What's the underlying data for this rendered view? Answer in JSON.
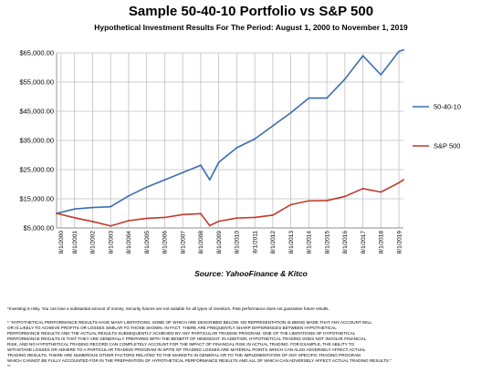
{
  "chart_data": {
    "type": "line",
    "title": "Sample 50-40-10 Portfolio vs S&P 500",
    "subtitle": "Hypothetical Investment  Results For The Period: August 1, 2000 to  November 1, 2019",
    "xlabel": "",
    "ylabel": "",
    "ylim": [
      5000,
      65000
    ],
    "yticks": [
      "$5,000.00",
      "$15,000.00",
      "$25,000.00",
      "$35,000.00",
      "$45,000.00",
      "$55,000.00",
      "$65,000.00"
    ],
    "ytick_values": [
      5000,
      15000,
      25000,
      35000,
      45000,
      55000,
      65000
    ],
    "categories": [
      "8/1/2000",
      "8/1/2001",
      "8/1/2002",
      "8/1/2003",
      "8/1/2004",
      "8/1/2005",
      "8/1/2006",
      "8/1/2007",
      "8/1/2008",
      "8/1/2009",
      "8/1/2010",
      "8/1/2011",
      "8/1/2012",
      "8/1/2013",
      "8/1/2014",
      "8/1/2015",
      "8/1/2016",
      "8/1/2017",
      "8/1/2018",
      "8/1/2019"
    ],
    "x_positions": [
      0.25,
      1,
      2,
      3,
      4,
      5,
      6,
      7,
      8,
      9,
      10,
      11,
      12,
      13,
      14,
      15,
      16,
      17,
      18,
      19
    ],
    "grid": true,
    "legend_position": "right",
    "series": [
      {
        "name": "50-40-10",
        "color": "#3b6db0",
        "x": [
          0,
          1,
          2,
          3,
          4,
          5,
          6,
          7,
          8,
          8.5,
          9,
          10,
          11,
          12,
          13,
          14,
          15,
          16,
          17,
          18,
          19,
          19.25
        ],
        "values": [
          10000,
          11500,
          12000,
          12300,
          16000,
          19000,
          21500,
          24000,
          26500,
          21500,
          27500,
          32500,
          35500,
          40000,
          44500,
          49500,
          49500,
          56000,
          64000,
          57500,
          65500,
          66000
        ]
      },
      {
        "name": "S&P 500",
        "color": "#c0392b",
        "x": [
          0,
          1,
          2,
          3,
          4,
          5,
          6,
          7,
          8,
          8.5,
          9,
          10,
          11,
          12,
          13,
          14,
          15,
          16,
          17,
          18,
          19,
          19.25
        ],
        "values": [
          10000,
          8500,
          7200,
          5700,
          7500,
          8300,
          8600,
          9600,
          9900,
          5800,
          7300,
          8400,
          8600,
          9400,
          13000,
          14300,
          14400,
          15800,
          18500,
          17300,
          20500,
          21500
        ]
      }
    ]
  },
  "source": "Source: YahooFinance & Kitco",
  "disclaimer_1": "*Investing is risky. You can lose a substantial amount of money. Security futures are not suitable for all types of investors. Past performance does not guarantee future results.",
  "disclaimer_2_lines": [
    "* \"HYPOTHETICAL PERFORMANCE RESULTS HAVE MANY LIMITATIONS, SOME OF WHICH ARE DESCRIBED BELOW. NO REPRESENTATION IS BEING MADE THAT ANY ACCOUNT WILL",
    "OR IS LIKELY TO ACHIEVE PROFITS OR LOSSES SIMILAR TO THOSE SHOWN. IN FACT, THERE ARE FREQUENTLY SHARP DIFFERENCES BETWEEN HYPOTHETICAL",
    "PERFORMANCE RESULTS AND THE ACTUAL RESULTS SUBSEQUENTLY ACHIEVED BY ANY PARTICULAR TRADING PROGRAM. ONE OF THE LIMITATIONS OF HYPOTHETICAL",
    "PERFORMANCE RESULTS IS THAT THEY ARE GENERALLY PREPARED WITH THE BENEFIT OF HINDSIGHT. IN ADDITION, HYPOTHETICAL TRADING DOES NOT INVOLVE FINANCIAL",
    "RISK, AND NO HYPOTHETICAL TRADING RECORD CAN COMPLETELY ACCOUNT FOR THE IMPACT OF FINANCIAL RISK IN ACTUAL TRADING. FOR EXAMPLE, THE ABILITY TO",
    "WITHSTAND LOSSES OR ADHERE TO A PARTICULAR TRADING PROGRAM IN SPITE OF TRADING LOSSES ARE MATERIAL POINTS WHICH CAN ALSO ADVERSELY AFFECT ACTUAL",
    "TRADING RESULTS. THERE ARE NUMEROUS OTHER FACTORS RELATED TO THE MARKETS IN GENERAL OR TO THE IMPLEMENTATION OF ANY SPECIFIC TRADING PROGRAM",
    "WHICH CANNOT BE FULLY ACCOUNTED FOR IN THE PREPARATION OF HYPOTHETICAL PERFORMANCE RESULTS AND ALL OF WHICH CAN ADVERSELY AFFECT ACTUAL TRADING RESULTS.\"",
    "**"
  ]
}
